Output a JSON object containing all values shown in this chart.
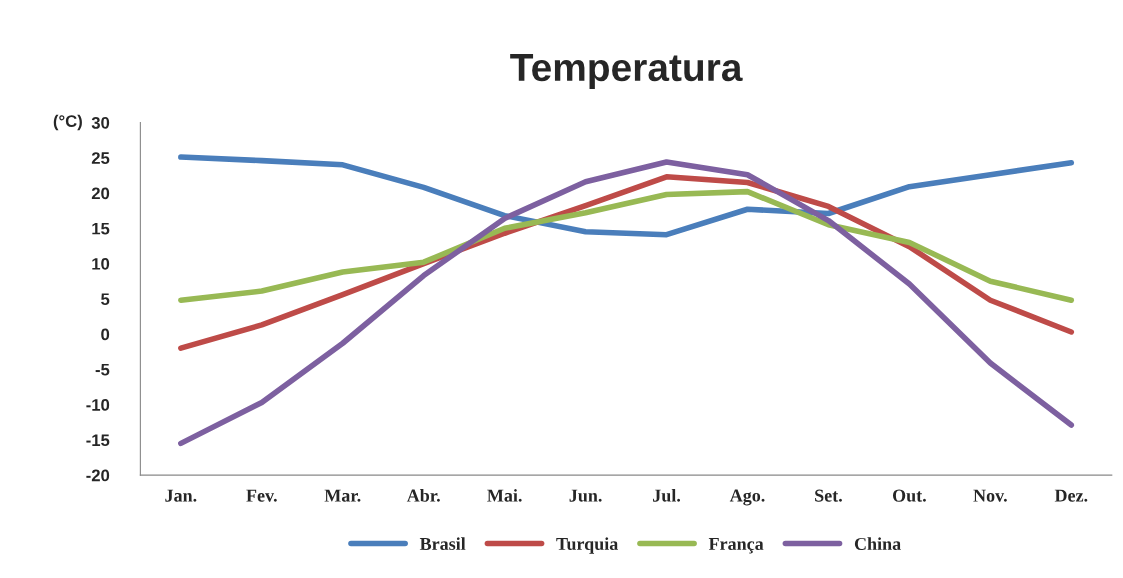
{
  "chart_data": {
    "type": "line",
    "title": "Temperatura",
    "ylabel": "(°C)",
    "categories": [
      "Jan.",
      "Fev.",
      "Mar.",
      "Abr.",
      "Mai.",
      "Jun.",
      "Jul.",
      "Ago.",
      "Set.",
      "Out.",
      "Nov.",
      "Dez."
    ],
    "series": [
      {
        "name": "Brasil",
        "color": "#4a7ebb",
        "values": [
          25.1,
          24.6,
          24.0,
          20.8,
          16.8,
          14.5,
          14.1,
          17.7,
          17.1,
          20.9,
          22.6,
          24.3
        ]
      },
      {
        "name": "Turquia",
        "color": "#be4b48",
        "values": [
          -2.0,
          1.3,
          5.6,
          10.0,
          14.3,
          18.2,
          22.3,
          21.5,
          18.1,
          12.4,
          4.8,
          0.3
        ]
      },
      {
        "name": "França",
        "color": "#98b954",
        "values": [
          4.8,
          6.1,
          8.8,
          10.2,
          15.0,
          17.2,
          19.8,
          20.2,
          15.5,
          13.0,
          7.5,
          4.8
        ]
      },
      {
        "name": "China",
        "color": "#7d60a0",
        "values": [
          -15.5,
          -9.7,
          -1.3,
          8.3,
          16.4,
          21.6,
          24.4,
          22.6,
          16.1,
          7.1,
          -4.1,
          -12.9
        ]
      }
    ],
    "ylim": [
      -20,
      30
    ],
    "yticks": [
      -20,
      -15,
      -10,
      -5,
      0,
      5,
      10,
      15,
      20,
      25,
      30
    ],
    "grid": false,
    "legend": "bottom",
    "marker": "none",
    "line_style": "solid"
  }
}
